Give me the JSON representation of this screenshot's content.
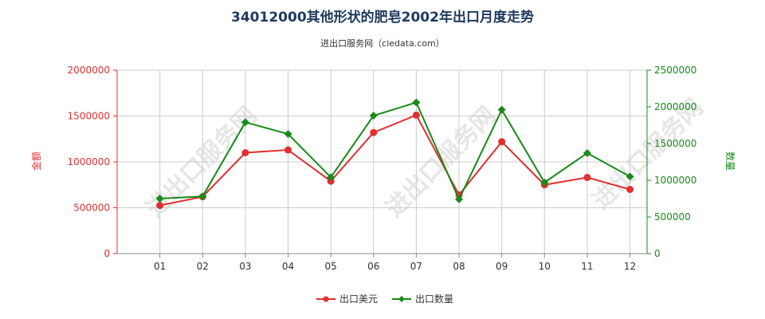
{
  "chart_data": {
    "type": "line",
    "title": "34012000其他形状的肥皂2002年出口月度走势",
    "subtitle": "进出口服务网（ciedata.com）",
    "categories": [
      "01",
      "02",
      "03",
      "04",
      "05",
      "06",
      "07",
      "08",
      "09",
      "10",
      "11",
      "12"
    ],
    "y_left": {
      "label": "金额",
      "ylim": [
        0,
        2000000
      ],
      "ticks": [
        "0",
        "500000",
        "1000000",
        "1500000",
        "2000000"
      ],
      "color": "#e03030"
    },
    "y_right": {
      "label": "数量",
      "ylim": [
        0,
        2500000
      ],
      "ticks": [
        "0",
        "500000",
        "1000000",
        "1500000",
        "2000000",
        "2500000"
      ],
      "color": "#1a8a1a"
    },
    "series": [
      {
        "name": "出口美元",
        "axis": "left",
        "color": "#e03030",
        "marker": "circle",
        "values": [
          525000,
          620000,
          1100000,
          1130000,
          790000,
          1320000,
          1510000,
          640000,
          1220000,
          750000,
          830000,
          700000
        ]
      },
      {
        "name": "出口数量",
        "axis": "right",
        "color": "#1a8a1a",
        "marker": "diamond",
        "values": [
          750000,
          780000,
          1790000,
          1630000,
          1040000,
          1880000,
          2060000,
          740000,
          1960000,
          970000,
          1370000,
          1050000
        ]
      }
    ],
    "grid": true,
    "legend_position": "bottom",
    "watermark": "进出口服务网"
  }
}
